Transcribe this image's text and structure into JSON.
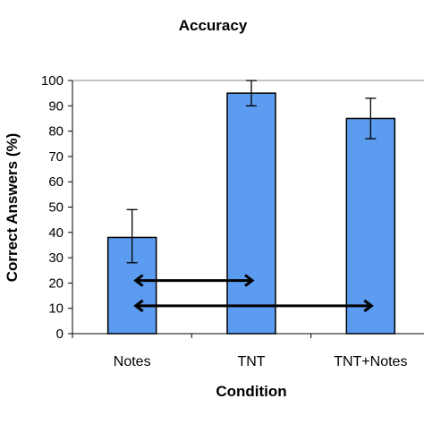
{
  "chart_data": {
    "type": "bar",
    "title": "Accuracy",
    "xlabel": "Condition",
    "ylabel": "Correct Answers (%)",
    "categories": [
      "Notes",
      "TNT",
      "TNT+Notes"
    ],
    "values": [
      38,
      95,
      85
    ],
    "error_bars": [
      {
        "low": 28,
        "high": 49
      },
      {
        "low": 90,
        "high": 100
      },
      {
        "low": 77,
        "high": 93
      }
    ],
    "ylim": [
      0,
      100
    ],
    "yticks": [
      0,
      10,
      20,
      30,
      40,
      50,
      60,
      70,
      80,
      90,
      100
    ],
    "grid": false,
    "bar_color": "#5b9bf0",
    "bar_stroke": "#000000",
    "comparisons": [
      {
        "from": "Notes",
        "to": "TNT",
        "y": 21
      },
      {
        "from": "Notes",
        "to": "TNT+Notes",
        "y": 11
      }
    ]
  }
}
